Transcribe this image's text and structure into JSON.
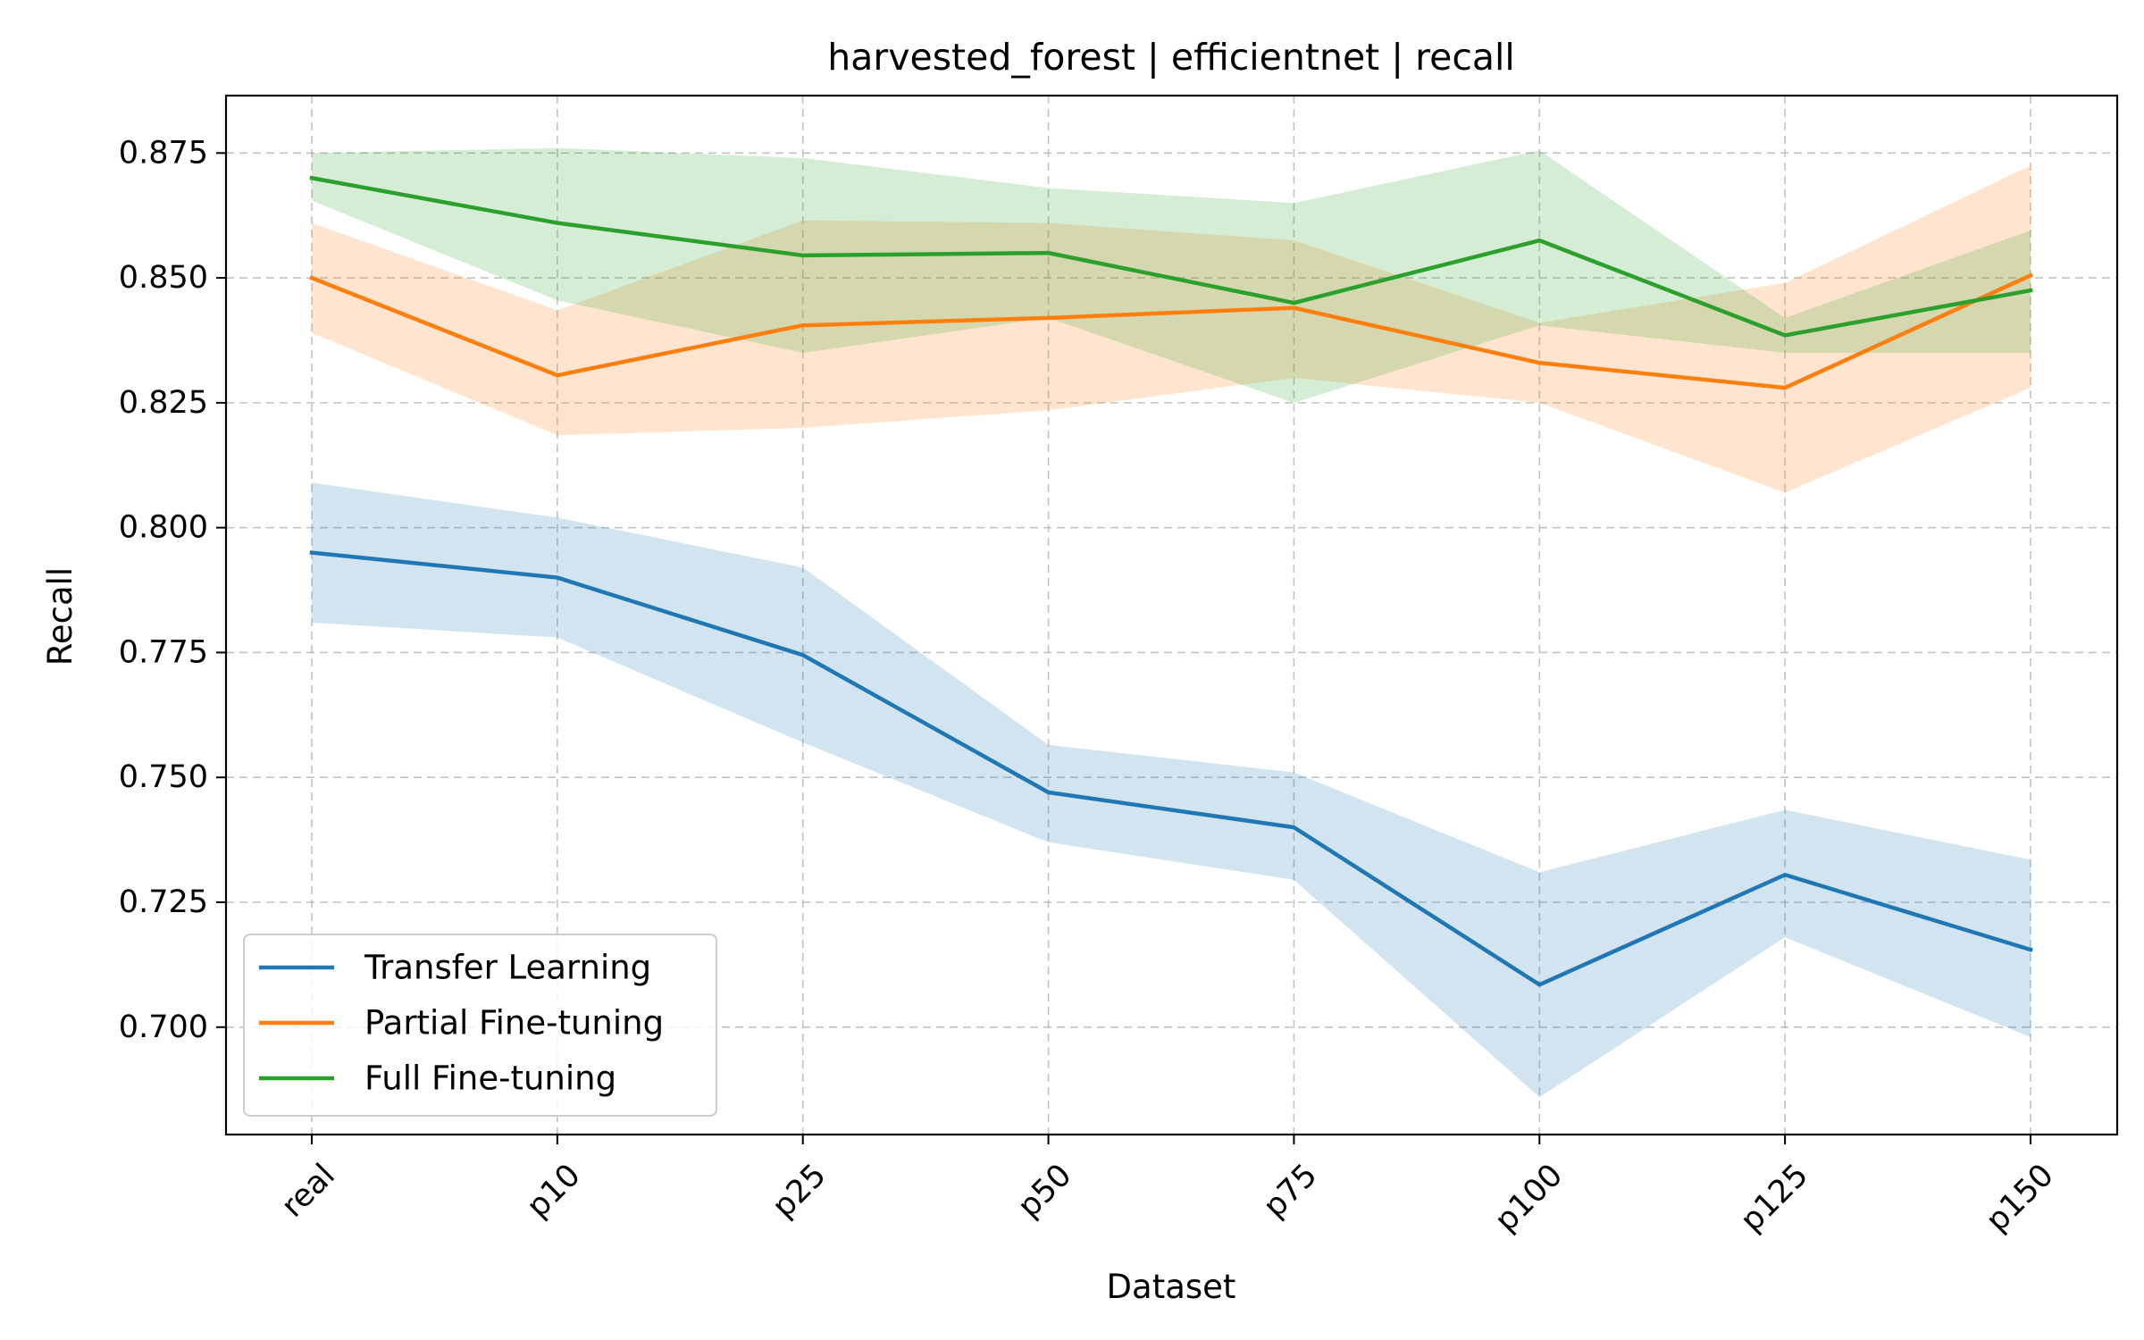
{
  "chart_data": {
    "type": "line",
    "title": "harvested_forest | efficientnet | recall",
    "xlabel": "Dataset",
    "ylabel": "Recall",
    "categories": [
      "real",
      "p10",
      "p25",
      "p50",
      "p75",
      "p100",
      "p125",
      "p150"
    ],
    "ylim": [
      0.6785,
      0.8865
    ],
    "yticks": [
      "0.700",
      "0.725",
      "0.750",
      "0.775",
      "0.800",
      "0.825",
      "0.850",
      "0.875"
    ],
    "grid": true,
    "legend_position": "lower-left",
    "series": [
      {
        "name": "Transfer Learning",
        "color": "#1f77b4",
        "values": [
          0.795,
          0.79,
          0.7745,
          0.747,
          0.74,
          0.7085,
          0.7305,
          0.7155
        ],
        "lower": [
          0.781,
          0.778,
          0.757,
          0.737,
          0.7295,
          0.686,
          0.718,
          0.698
        ],
        "upper": [
          0.809,
          0.802,
          0.792,
          0.7565,
          0.751,
          0.731,
          0.7435,
          0.7335
        ]
      },
      {
        "name": "Partial Fine-tuning",
        "color": "#ff7f0e",
        "values": [
          0.85,
          0.8305,
          0.8405,
          0.842,
          0.844,
          0.833,
          0.828,
          0.8505
        ],
        "lower": [
          0.839,
          0.8185,
          0.82,
          0.8235,
          0.83,
          0.825,
          0.807,
          0.828
        ],
        "upper": [
          0.861,
          0.8435,
          0.8615,
          0.861,
          0.8575,
          0.841,
          0.849,
          0.8725
        ]
      },
      {
        "name": "Full Fine-tuning",
        "color": "#2ca02c",
        "values": [
          0.87,
          0.861,
          0.8545,
          0.855,
          0.845,
          0.8575,
          0.8385,
          0.8475
        ],
        "lower": [
          0.8655,
          0.8455,
          0.835,
          0.842,
          0.825,
          0.8405,
          0.835,
          0.835
        ],
        "upper": [
          0.875,
          0.876,
          0.874,
          0.868,
          0.865,
          0.8755,
          0.842,
          0.8595
        ]
      }
    ]
  }
}
